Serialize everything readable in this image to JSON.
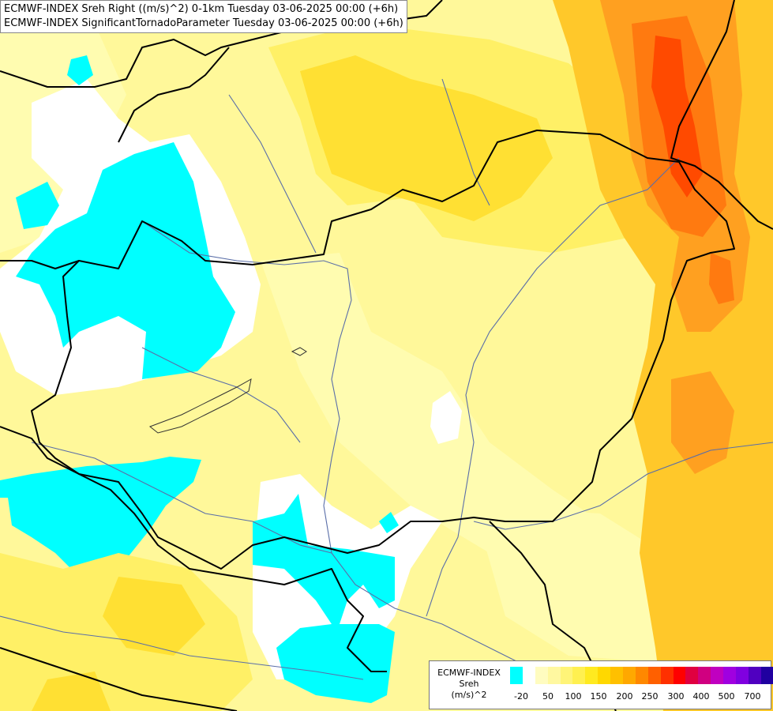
{
  "title": {
    "line1": "ECMWF-INDEX Sreh Right ((m/s)^2) 0-1km Tuesday 03-06-2025 00:00 (+6h)",
    "line2": "ECMWF-INDEX SignificantTornadoParameter Tuesday 03-06-2025 00:00 (+6h)"
  },
  "legend": {
    "model": "ECMWF-INDEX",
    "parameter": "Sreh",
    "unit": "(m/s)^2",
    "colors": [
      "#00ffff",
      "#ffffff",
      "#fffcc0",
      "#fff8a0",
      "#fff478",
      "#fff050",
      "#ffea20",
      "#ffd800",
      "#ffc000",
      "#ffa800",
      "#ff8800",
      "#ff6000",
      "#ff3000",
      "#ff0000",
      "#e00040",
      "#d00080",
      "#c000c0",
      "#a000e0",
      "#8000e0",
      "#5000c0",
      "#2000a0",
      "#000080"
    ],
    "tick_labels": [
      "-20",
      "50",
      "100",
      "150",
      "200",
      "250",
      "300",
      "400",
      "500",
      "700"
    ]
  },
  "colors": {
    "cyan": "#00ffff",
    "white": "#ffffff",
    "pale_yellow": "#fffcb0",
    "light_yellow": "#fff89a",
    "yellow": "#fff066",
    "gold": "#ffe033",
    "amber": "#ffc82a",
    "orange": "#ffa020",
    "dark_orange": "#ff7a10",
    "red_orange": "#ff4a00",
    "border_line": "#000000",
    "river_line": "#5a6ea8"
  }
}
